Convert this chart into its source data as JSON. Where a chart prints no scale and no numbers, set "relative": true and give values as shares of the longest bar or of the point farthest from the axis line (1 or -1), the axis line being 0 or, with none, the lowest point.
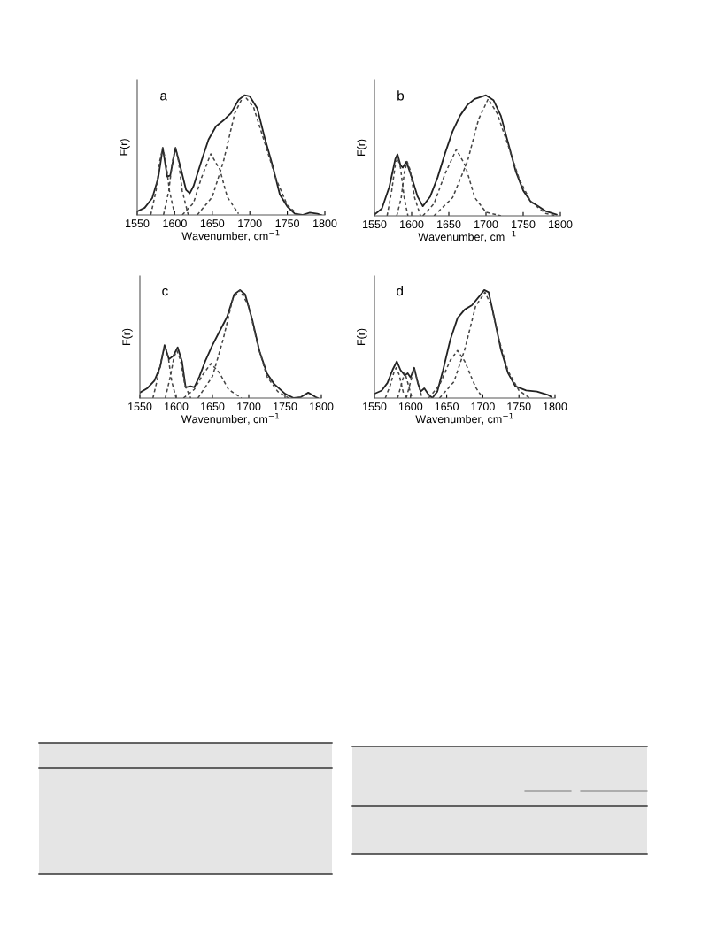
{
  "chart_data": [
    {
      "type": "line",
      "relative": true,
      "tick_labels": "x",
      "xlabel": "Wavenumber, cm$^{−1}$",
      "ylabel": "F(r)",
      "annotations": [
        "a"
      ],
      "xlim": [
        1550,
        1800
      ],
      "xticks": [
        1550,
        1600,
        1650,
        1700,
        1750,
        1800
      ],
      "series": [
        {
          "color": "#222222",
          "line_style": "solid",
          "x": [
            1550,
            1560,
            1570,
            1578,
            1584,
            1590,
            1594,
            1601,
            1608,
            1615,
            1620,
            1625,
            1635,
            1645,
            1655,
            1665,
            1675,
            1685,
            1693,
            1700,
            1710,
            1720,
            1730,
            1740,
            1750,
            1760,
            1770,
            1780,
            1790,
            1795
          ],
          "values": [
            0.03,
            0.06,
            0.14,
            0.31,
            0.56,
            0.32,
            0.33,
            0.56,
            0.39,
            0.21,
            0.18,
            0.24,
            0.44,
            0.63,
            0.74,
            0.79,
            0.85,
            0.96,
            1.0,
            0.99,
            0.89,
            0.64,
            0.42,
            0.17,
            0.07,
            0.01,
            0,
            0.02,
            0.01,
            0
          ]
        },
        {
          "color": "#444444",
          "line_style": "dashed",
          "x": [
            1568,
            1575,
            1580,
            1584,
            1588,
            1593,
            1600
          ],
          "values": [
            0,
            0.2,
            0.45,
            0.56,
            0.45,
            0.2,
            0
          ]
        },
        {
          "color": "#444444",
          "line_style": "dashed",
          "x": [
            1585,
            1592,
            1597,
            1601,
            1605,
            1610,
            1618
          ],
          "values": [
            0,
            0.2,
            0.45,
            0.56,
            0.45,
            0.2,
            0
          ]
        },
        {
          "color": "#444444",
          "line_style": "dashed",
          "x": [
            1610,
            1625,
            1635,
            1648,
            1660,
            1670,
            1685
          ],
          "values": [
            0,
            0.1,
            0.3,
            0.51,
            0.38,
            0.15,
            0.01
          ]
        },
        {
          "color": "#444444",
          "line_style": "dashed",
          "x": [
            1630,
            1650,
            1665,
            1680,
            1692,
            1705,
            1720,
            1735,
            1750,
            1765
          ],
          "values": [
            0,
            0.15,
            0.45,
            0.85,
            1.0,
            0.9,
            0.6,
            0.3,
            0.08,
            0
          ]
        }
      ]
    },
    {
      "type": "line",
      "relative": true,
      "tick_labels": "x",
      "xlabel": "Wavenumber, cm$^{−1}$",
      "ylabel": "F(r)",
      "annotations": [
        "b"
      ],
      "xlim": [
        1550,
        1800
      ],
      "xticks": [
        1550,
        1600,
        1650,
        1700,
        1750,
        1800
      ],
      "series": [
        {
          "color": "#222222",
          "line_style": "solid",
          "x": [
            1550,
            1560,
            1570,
            1578,
            1581,
            1585,
            1588,
            1593,
            1600,
            1608,
            1615,
            1625,
            1635,
            1645,
            1655,
            1665,
            1675,
            1685,
            1700,
            1710,
            1720,
            1730,
            1740,
            1750,
            1760,
            1770,
            1780,
            1795
          ],
          "values": [
            0.01,
            0.06,
            0.24,
            0.47,
            0.51,
            0.42,
            0.4,
            0.45,
            0.32,
            0.16,
            0.08,
            0.16,
            0.32,
            0.52,
            0.7,
            0.83,
            0.92,
            0.97,
            1.0,
            0.96,
            0.83,
            0.6,
            0.37,
            0.21,
            0.12,
            0.08,
            0.04,
            0.01
          ]
        },
        {
          "color": "#444444",
          "line_style": "dashed",
          "x": [
            1567,
            1573,
            1578,
            1581,
            1585,
            1590,
            1595
          ],
          "values": [
            0,
            0.2,
            0.42,
            0.48,
            0.4,
            0.15,
            0
          ]
        },
        {
          "color": "#444444",
          "line_style": "dashed",
          "x": [
            1580,
            1586,
            1590,
            1594,
            1598,
            1604,
            1612
          ],
          "values": [
            0,
            0.15,
            0.35,
            0.45,
            0.38,
            0.15,
            0
          ]
        },
        {
          "color": "#444444",
          "line_style": "dashed",
          "x": [
            1615,
            1630,
            1645,
            1660,
            1672,
            1685,
            1700,
            1720
          ],
          "values": [
            0,
            0.1,
            0.35,
            0.55,
            0.42,
            0.15,
            0.03,
            0
          ]
        },
        {
          "color": "#444444",
          "line_style": "dashed",
          "x": [
            1630,
            1655,
            1675,
            1690,
            1703,
            1715,
            1730,
            1745,
            1760,
            1780,
            1795
          ],
          "values": [
            0,
            0.15,
            0.45,
            0.8,
            0.97,
            0.85,
            0.58,
            0.3,
            0.12,
            0.02,
            0
          ]
        }
      ]
    },
    {
      "type": "line",
      "relative": true,
      "tick_labels": "x",
      "xlabel": "Wavenumber, cm$^{−1}$",
      "ylabel": "F(r)",
      "annotations": [
        "c"
      ],
      "xlim": [
        1550,
        1800
      ],
      "xticks": [
        1550,
        1600,
        1650,
        1700,
        1750,
        1800
      ],
      "series": [
        {
          "color": "#222222",
          "line_style": "solid",
          "x": [
            1550,
            1560,
            1570,
            1578,
            1584,
            1590,
            1596,
            1602,
            1608,
            1613,
            1620,
            1625,
            1632,
            1640,
            1650,
            1660,
            1670,
            1680,
            1688,
            1695,
            1705,
            1715,
            1725,
            1735,
            1750,
            1762,
            1772,
            1782,
            1792,
            1795
          ],
          "values": [
            0.05,
            0.09,
            0.16,
            0.29,
            0.49,
            0.36,
            0.39,
            0.47,
            0.34,
            0.1,
            0.11,
            0.1,
            0.2,
            0.34,
            0.49,
            0.62,
            0.75,
            0.96,
            1.0,
            0.96,
            0.72,
            0.43,
            0.23,
            0.13,
            0.04,
            0,
            0.01,
            0.05,
            0.01,
            0
          ]
        },
        {
          "color": "#444444",
          "line_style": "dashed",
          "x": [
            1568,
            1575,
            1581,
            1585,
            1589,
            1594,
            1600
          ],
          "values": [
            0,
            0.2,
            0.4,
            0.48,
            0.38,
            0.15,
            0
          ]
        },
        {
          "color": "#444444",
          "line_style": "dashed",
          "x": [
            1585,
            1592,
            1597,
            1601,
            1606,
            1612,
            1620
          ],
          "values": [
            0,
            0.2,
            0.38,
            0.44,
            0.35,
            0.12,
            0
          ]
        },
        {
          "color": "#444444",
          "line_style": "dashed",
          "x": [
            1610,
            1625,
            1637,
            1648,
            1660,
            1672,
            1690
          ],
          "values": [
            0,
            0.08,
            0.22,
            0.32,
            0.23,
            0.08,
            0
          ]
        },
        {
          "color": "#444444",
          "line_style": "dashed",
          "x": [
            1630,
            1650,
            1665,
            1678,
            1688,
            1700,
            1712,
            1725,
            1740,
            1755
          ],
          "values": [
            0,
            0.2,
            0.55,
            0.92,
            1.0,
            0.85,
            0.5,
            0.2,
            0.06,
            0
          ]
        }
      ]
    },
    {
      "type": "line",
      "relative": true,
      "tick_labels": "x",
      "xlabel": "Wavenumber, cm$^{−1}$",
      "ylabel": "F(r)",
      "annotations": [
        "d"
      ],
      "xlim": [
        1550,
        1800
      ],
      "xticks": [
        1550,
        1600,
        1650,
        1700,
        1750,
        1800
      ],
      "series": [
        {
          "color": "#222222",
          "line_style": "solid",
          "x": [
            1550,
            1560,
            1568,
            1575,
            1581,
            1586,
            1592,
            1596,
            1600,
            1605,
            1610,
            1614,
            1619,
            1624,
            1630,
            1637,
            1645,
            1655,
            1665,
            1675,
            1685,
            1695,
            1702,
            1708,
            1715,
            1725,
            1735,
            1745,
            1760,
            1775,
            1790,
            1795
          ],
          "values": [
            0.04,
            0.07,
            0.14,
            0.26,
            0.34,
            0.26,
            0.21,
            0.23,
            0.19,
            0.28,
            0.14,
            0.06,
            0.09,
            0.04,
            0,
            0.06,
            0.26,
            0.54,
            0.74,
            0.82,
            0.86,
            0.94,
            1.0,
            0.98,
            0.77,
            0.45,
            0.23,
            0.11,
            0.07,
            0.06,
            0.03,
            0.01
          ]
        },
        {
          "color": "#444444",
          "line_style": "dashed",
          "x": [
            1565,
            1572,
            1577,
            1580,
            1584,
            1590,
            1595
          ],
          "values": [
            0,
            0.12,
            0.24,
            0.28,
            0.22,
            0.05,
            0
          ]
        },
        {
          "color": "#444444",
          "line_style": "dashed",
          "x": [
            1582,
            1587,
            1592,
            1597,
            1602
          ],
          "values": [
            0,
            0.12,
            0.24,
            0.12,
            0
          ]
        },
        {
          "color": "#444444",
          "line_style": "dashed",
          "x": [
            1594,
            1600,
            1605,
            1610,
            1616
          ],
          "values": [
            0,
            0.15,
            0.27,
            0.15,
            0
          ]
        },
        {
          "color": "#444444",
          "line_style": "dashed",
          "x": [
            1625,
            1640,
            1655,
            1665,
            1675,
            1690,
            1700
          ],
          "values": [
            0,
            0.12,
            0.35,
            0.44,
            0.34,
            0.1,
            0
          ]
        },
        {
          "color": "#444444",
          "line_style": "dashed",
          "x": [
            1640,
            1660,
            1675,
            1690,
            1703,
            1712,
            1722,
            1735,
            1750,
            1765
          ],
          "values": [
            0,
            0.15,
            0.45,
            0.85,
            0.98,
            0.85,
            0.55,
            0.25,
            0.07,
            0
          ]
        }
      ]
    }
  ]
}
